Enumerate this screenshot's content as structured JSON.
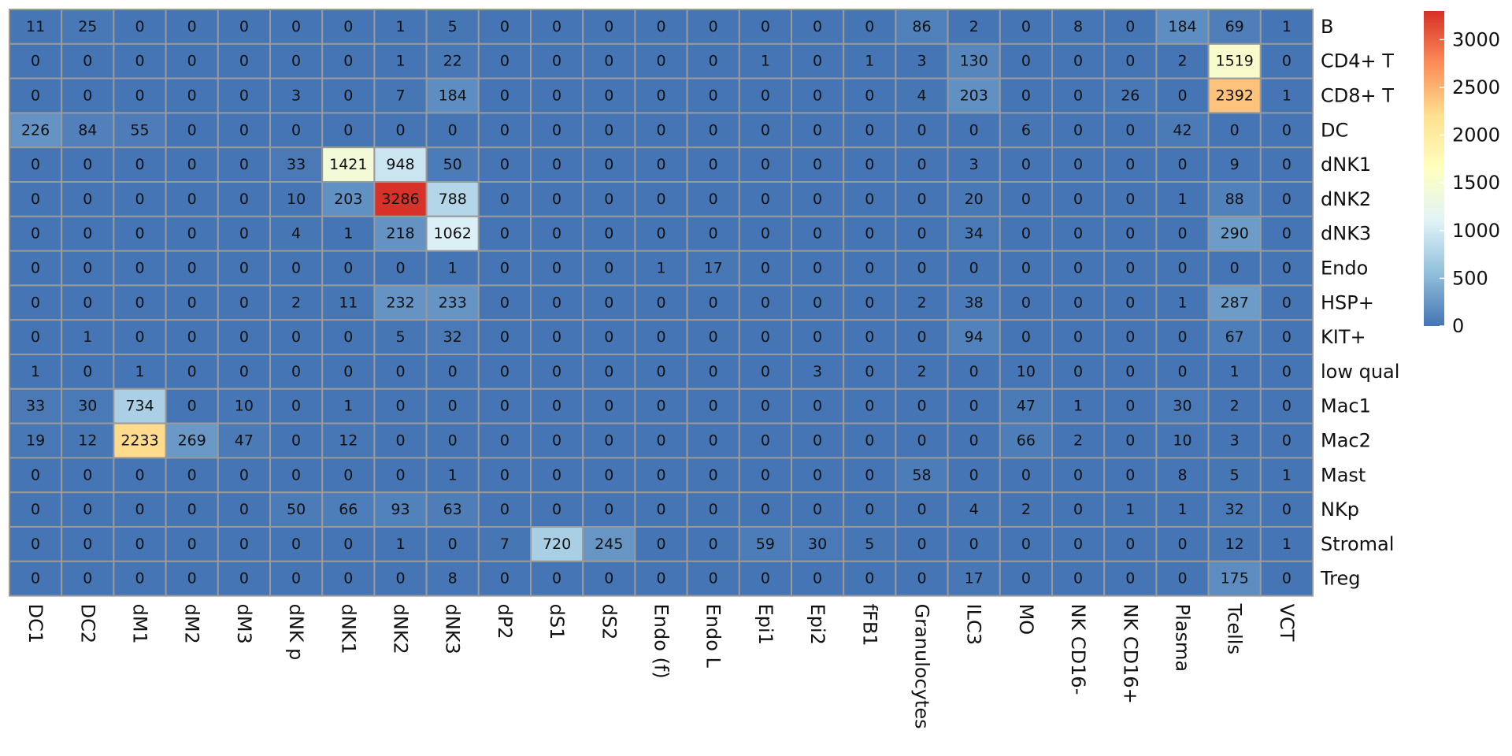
{
  "chart_data": {
    "type": "heatmap",
    "title": "",
    "xlabel": "",
    "ylabel": "",
    "columns": [
      "DC1",
      "DC2",
      "dM1",
      "dM2",
      "dM3",
      "dNK p",
      "dNK1",
      "dNK2",
      "dNK3",
      "dP2",
      "dS1",
      "dS2",
      "Endo (f)",
      "Endo L",
      "Epi1",
      "Epi2",
      "fFB1",
      "Granulocytes",
      "ILC3",
      "MO",
      "NK CD16-",
      "NK CD16+",
      "Plasma",
      "Tcells",
      "VCT"
    ],
    "rows": [
      "B",
      "CD4+ T",
      "CD8+ T",
      "DC",
      "dNK1",
      "dNK2",
      "dNK3",
      "Endo",
      "HSP+",
      "KIT+",
      "low qual",
      "Mac1",
      "Mac2",
      "Mast",
      "NKp",
      "Stromal",
      "Treg"
    ],
    "values": [
      [
        11,
        25,
        0,
        0,
        0,
        0,
        0,
        1,
        5,
        0,
        0,
        0,
        0,
        0,
        0,
        0,
        0,
        86,
        2,
        0,
        8,
        0,
        184,
        69,
        1
      ],
      [
        0,
        0,
        0,
        0,
        0,
        0,
        0,
        1,
        22,
        0,
        0,
        0,
        0,
        0,
        1,
        0,
        1,
        3,
        130,
        0,
        0,
        0,
        2,
        1519,
        0
      ],
      [
        0,
        0,
        0,
        0,
        0,
        3,
        0,
        7,
        184,
        0,
        0,
        0,
        0,
        0,
        0,
        0,
        0,
        4,
        203,
        0,
        0,
        26,
        0,
        2392,
        1
      ],
      [
        226,
        84,
        55,
        0,
        0,
        0,
        0,
        0,
        0,
        0,
        0,
        0,
        0,
        0,
        0,
        0,
        0,
        0,
        0,
        6,
        0,
        0,
        42,
        0,
        0
      ],
      [
        0,
        0,
        0,
        0,
        0,
        33,
        1421,
        948,
        50,
        0,
        0,
        0,
        0,
        0,
        0,
        0,
        0,
        0,
        3,
        0,
        0,
        0,
        0,
        9,
        0
      ],
      [
        0,
        0,
        0,
        0,
        0,
        10,
        203,
        3286,
        788,
        0,
        0,
        0,
        0,
        0,
        0,
        0,
        0,
        0,
        20,
        0,
        0,
        0,
        1,
        88,
        0
      ],
      [
        0,
        0,
        0,
        0,
        0,
        4,
        1,
        218,
        1062,
        0,
        0,
        0,
        0,
        0,
        0,
        0,
        0,
        0,
        34,
        0,
        0,
        0,
        0,
        290,
        0
      ],
      [
        0,
        0,
        0,
        0,
        0,
        0,
        0,
        0,
        1,
        0,
        0,
        0,
        1,
        17,
        0,
        0,
        0,
        0,
        0,
        0,
        0,
        0,
        0,
        0,
        0
      ],
      [
        0,
        0,
        0,
        0,
        0,
        2,
        11,
        232,
        233,
        0,
        0,
        0,
        0,
        0,
        0,
        0,
        0,
        2,
        38,
        0,
        0,
        0,
        1,
        287,
        0
      ],
      [
        0,
        1,
        0,
        0,
        0,
        0,
        0,
        5,
        32,
        0,
        0,
        0,
        0,
        0,
        0,
        0,
        0,
        0,
        94,
        0,
        0,
        0,
        0,
        67,
        0
      ],
      [
        1,
        0,
        1,
        0,
        0,
        0,
        0,
        0,
        0,
        0,
        0,
        0,
        0,
        0,
        0,
        3,
        0,
        2,
        0,
        10,
        0,
        0,
        0,
        1,
        0
      ],
      [
        33,
        30,
        734,
        0,
        10,
        0,
        1,
        0,
        0,
        0,
        0,
        0,
        0,
        0,
        0,
        0,
        0,
        0,
        0,
        47,
        1,
        0,
        30,
        2,
        0
      ],
      [
        19,
        12,
        2233,
        269,
        47,
        0,
        12,
        0,
        0,
        0,
        0,
        0,
        0,
        0,
        0,
        0,
        0,
        0,
        0,
        66,
        2,
        0,
        10,
        3,
        0
      ],
      [
        0,
        0,
        0,
        0,
        0,
        0,
        0,
        0,
        1,
        0,
        0,
        0,
        0,
        0,
        0,
        0,
        0,
        58,
        0,
        0,
        0,
        0,
        8,
        5,
        1
      ],
      [
        0,
        0,
        0,
        0,
        0,
        50,
        66,
        93,
        63,
        0,
        0,
        0,
        0,
        0,
        0,
        0,
        0,
        0,
        4,
        2,
        0,
        1,
        1,
        32,
        0
      ],
      [
        0,
        0,
        0,
        0,
        0,
        0,
        0,
        1,
        0,
        7,
        720,
        245,
        0,
        0,
        59,
        30,
        5,
        0,
        0,
        0,
        0,
        0,
        0,
        12,
        1
      ],
      [
        0,
        0,
        0,
        0,
        0,
        0,
        0,
        0,
        8,
        0,
        0,
        0,
        0,
        0,
        0,
        0,
        0,
        0,
        17,
        0,
        0,
        0,
        0,
        175,
        0
      ]
    ],
    "color_range": [
      0,
      3300
    ],
    "colorbar": {
      "ticks": [
        0,
        500,
        1000,
        1500,
        2000,
        2500,
        3000
      ],
      "tick_labels": [
        "0",
        "500",
        "1000",
        "1500",
        "2000",
        "2500",
        "3000"
      ],
      "colors": [
        "#4575b4",
        "#91bfdb",
        "#e0f3f8",
        "#ffffbf",
        "#fee090",
        "#fc8d59",
        "#d73027"
      ]
    },
    "grid_color": "#9a9a9a",
    "legend": "right"
  }
}
